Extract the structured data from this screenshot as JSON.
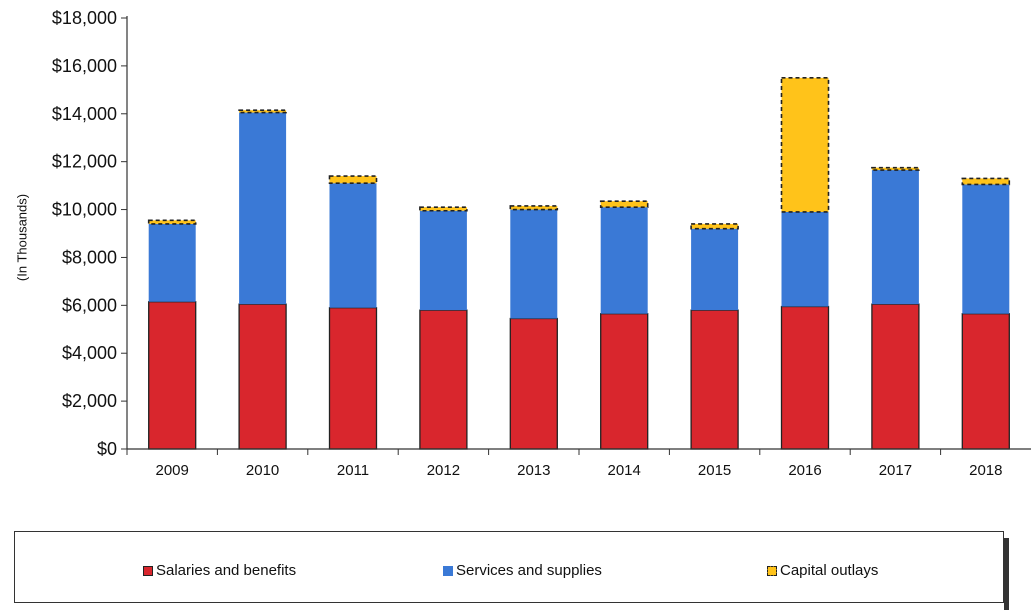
{
  "chart_data": {
    "type": "bar",
    "stacked": true,
    "title": "",
    "xlabel": "",
    "ylabel": "(In Thousands)",
    "ylim": [
      0,
      18000
    ],
    "y_ticks": [
      "$0",
      "$2,000",
      "$4,000",
      "$6,000",
      "$8,000",
      "$10,000",
      "$12,000",
      "$14,000",
      "$16,000",
      "$18,000"
    ],
    "categories": [
      "2009",
      "2010",
      "2011",
      "2012",
      "2013",
      "2014",
      "2015",
      "2016",
      "2017",
      "2018"
    ],
    "series": [
      {
        "name": "Salaries and benefits",
        "color": "#d9262d",
        "values": [
          6150,
          6050,
          5900,
          5800,
          5450,
          5650,
          5800,
          5950,
          6050,
          5650
        ]
      },
      {
        "name": "Services and supplies",
        "color": "#3a79d6",
        "values": [
          3250,
          8000,
          5200,
          4150,
          4550,
          4450,
          3400,
          3950,
          5600,
          5400
        ]
      },
      {
        "name": "Capital outlays",
        "color": "#ffc31a",
        "values": [
          150,
          100,
          300,
          150,
          150,
          250,
          200,
          5600,
          100,
          250
        ]
      }
    ],
    "legend_position": "bottom",
    "grid": false
  }
}
